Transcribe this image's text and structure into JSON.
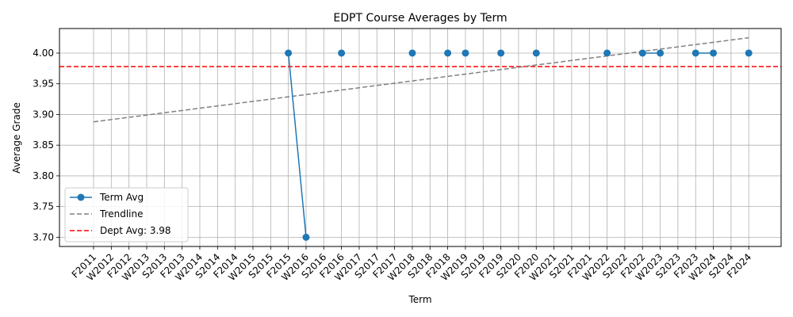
{
  "chart_data": {
    "type": "line",
    "title": "EDPT Course Averages by Term",
    "xlabel": "Term",
    "ylabel": "Average Grade",
    "categories": [
      "F2011",
      "W2012",
      "F2012",
      "W2013",
      "S2013",
      "F2013",
      "W2014",
      "S2014",
      "F2014",
      "W2015",
      "S2015",
      "F2015",
      "W2016",
      "S2016",
      "F2016",
      "W2017",
      "S2017",
      "F2017",
      "W2018",
      "S2018",
      "F2018",
      "W2019",
      "S2019",
      "F2019",
      "S2020",
      "F2020",
      "W2021",
      "S2021",
      "F2021",
      "W2022",
      "S2022",
      "F2022",
      "W2023",
      "S2023",
      "F2023",
      "W2024",
      "S2024",
      "F2024"
    ],
    "ylim": [
      3.685,
      4.04
    ],
    "yticks": [
      3.7,
      3.75,
      3.8,
      3.85,
      3.9,
      3.95,
      4.0
    ],
    "grid": true,
    "legend_position": "lower-left",
    "series": [
      {
        "name": "Term Avg",
        "style": "line-marker",
        "color": "#1f77b4",
        "points": [
          {
            "x": "F2015",
            "y": 4.0
          },
          {
            "x": "W2016",
            "y": 3.7
          },
          {
            "x": "F2016",
            "y": 4.0
          },
          {
            "x": "W2018",
            "y": 4.0
          },
          {
            "x": "F2018",
            "y": 4.0
          },
          {
            "x": "W2019",
            "y": 4.0
          },
          {
            "x": "F2019",
            "y": 4.0
          },
          {
            "x": "F2020",
            "y": 4.0
          },
          {
            "x": "W2022",
            "y": 4.0
          },
          {
            "x": "F2022",
            "y": 4.0
          },
          {
            "x": "W2023",
            "y": 4.0
          },
          {
            "x": "F2023",
            "y": 4.0
          },
          {
            "x": "W2024",
            "y": 4.0
          },
          {
            "x": "F2024",
            "y": 4.0
          }
        ],
        "segments": [
          [
            "F2015",
            "W2016"
          ],
          [
            "F2022",
            "W2023"
          ],
          [
            "F2023",
            "W2024"
          ]
        ]
      },
      {
        "name": "Trendline",
        "style": "dashed",
        "color": "#808080",
        "points": [
          {
            "x": "F2011",
            "y": 3.888
          },
          {
            "x": "F2024",
            "y": 4.025
          }
        ]
      },
      {
        "name": "Dept Avg: 3.98",
        "style": "dashed-hline",
        "color": "#ff0000",
        "y": 3.978
      }
    ]
  }
}
